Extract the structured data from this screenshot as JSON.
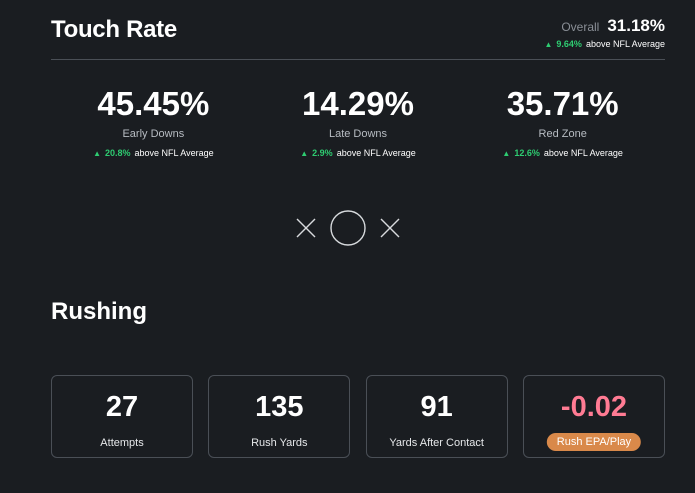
{
  "touch_rate": {
    "title": "Touch Rate",
    "overall_label": "Overall",
    "overall_value": "31.18%",
    "overall_delta": "9.64%",
    "delta_suffix": "above NFL Average",
    "stats": [
      {
        "value": "45.45%",
        "label": "Early Downs",
        "delta": "20.8%"
      },
      {
        "value": "14.29%",
        "label": "Late Downs",
        "delta": "2.9%"
      },
      {
        "value": "35.71%",
        "label": "Red Zone",
        "delta": "12.6%"
      }
    ]
  },
  "icons": [
    "x-icon",
    "circle-icon",
    "x-icon"
  ],
  "rushing": {
    "title": "Rushing",
    "cards": [
      {
        "value": "27",
        "label": "Attempts"
      },
      {
        "value": "135",
        "label": "Rush Yards"
      },
      {
        "value": "91",
        "label": "Yards After Contact"
      },
      {
        "value": "-0.02",
        "label": "Rush EPA/Play"
      }
    ]
  },
  "colors": {
    "background": "#1a1d21",
    "positive": "#2ecc71",
    "negative_value": "#ff7b93",
    "badge": "#d9894a",
    "border": "#4a4f56"
  }
}
